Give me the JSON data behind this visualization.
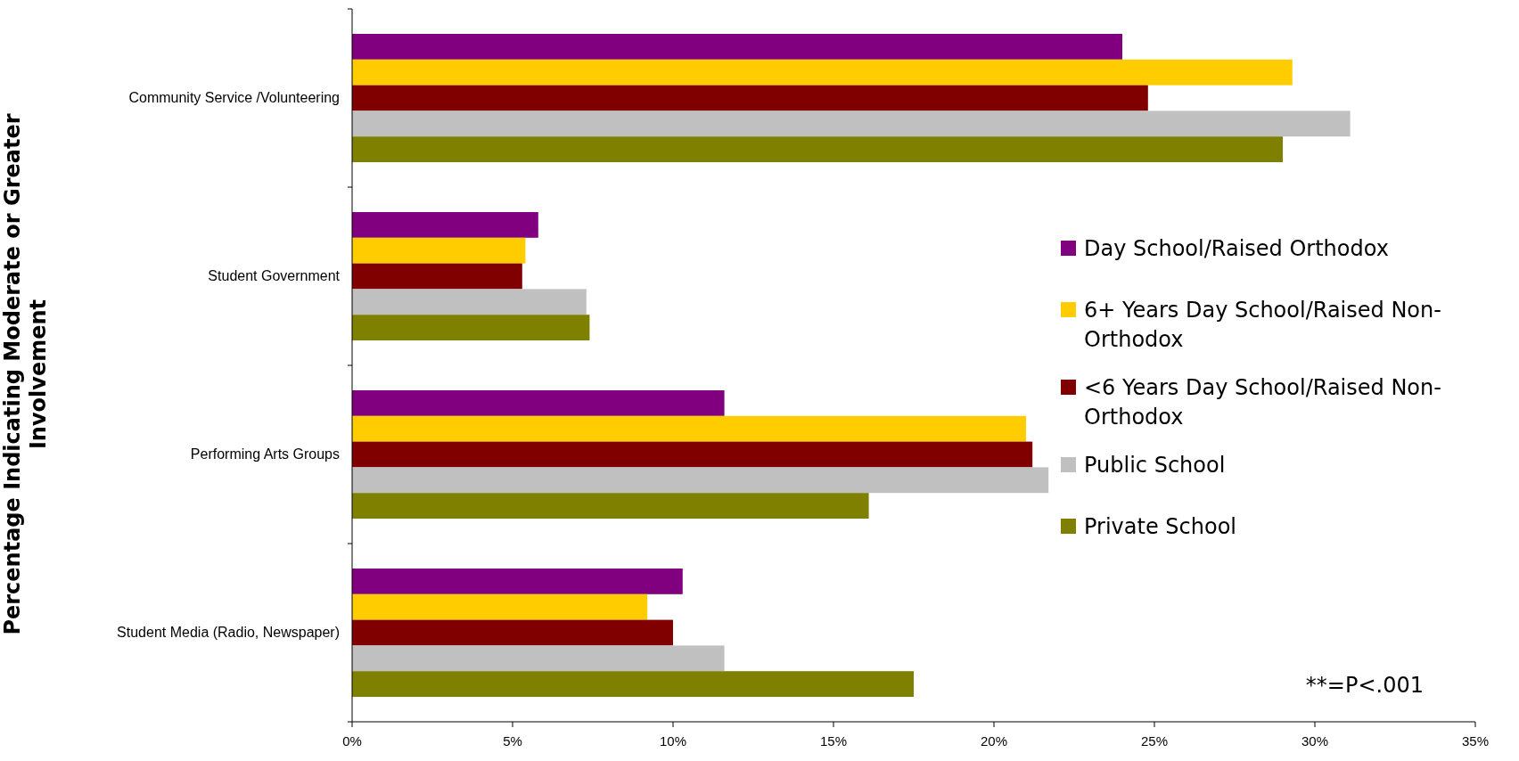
{
  "chart_data": {
    "type": "bar",
    "orientation": "horizontal",
    "ylabel": "Percentage Indicating Moderate or Greater Involvement",
    "categories": [
      "Community Service /Volunteering",
      "Student Government",
      "Performing Arts Groups",
      "Student Media (Radio, Newspaper)"
    ],
    "series": [
      {
        "name": "Day School/Raised Orthodox",
        "color": "#800080",
        "values": [
          24.0,
          5.8,
          11.6,
          10.3
        ]
      },
      {
        "name": "6+ Years Day School/Raised Non-Orthodox",
        "color": "#ffcc00",
        "values": [
          29.3,
          5.4,
          21.0,
          9.2
        ]
      },
      {
        "name": "<6 Years Day School/Raised Non-Orthodox",
        "color": "#800000",
        "values": [
          24.8,
          5.3,
          21.2,
          10.0
        ]
      },
      {
        "name": "Public School",
        "color": "#c0c0c0",
        "values": [
          31.1,
          7.3,
          21.7,
          11.6
        ]
      },
      {
        "name": "Private School",
        "color": "#808000",
        "values": [
          29.0,
          7.4,
          16.1,
          17.5
        ]
      }
    ],
    "xlim": [
      0,
      35
    ],
    "xticks": [
      {
        "value": 0,
        "label": "0%"
      },
      {
        "value": 5,
        "label": "5%"
      },
      {
        "value": 10,
        "label": "10%"
      },
      {
        "value": 15,
        "label": "15%"
      },
      {
        "value": 20,
        "label": "20%"
      },
      {
        "value": 25,
        "label": "25%"
      },
      {
        "value": 30,
        "label": "30%"
      },
      {
        "value": 35,
        "label": "35%"
      }
    ],
    "legend": "right",
    "grid": false,
    "annotations": [
      "**=P<.001"
    ]
  }
}
